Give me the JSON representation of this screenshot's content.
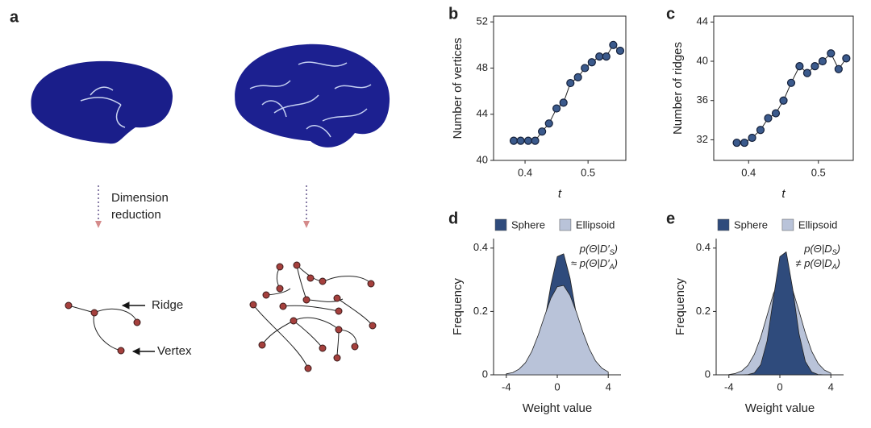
{
  "figure": {
    "panel_a": {
      "label": "a",
      "reduction_label": [
        "Dimension",
        "reduction"
      ],
      "ridge_label": "Ridge",
      "vertex_label": "Vertex"
    }
  },
  "chart_data": [
    {
      "type": "line",
      "panel_label": "b",
      "ylabel": "Number of vertices",
      "xlabel": "t",
      "color": "#3b5a8c",
      "x": [
        0.382,
        0.393,
        0.405,
        0.416,
        0.427,
        0.438,
        0.45,
        0.461,
        0.472,
        0.484,
        0.495,
        0.506,
        0.518,
        0.529,
        0.54,
        0.551
      ],
      "values": [
        41.7,
        41.7,
        41.7,
        41.7,
        42.5,
        43.2,
        44.5,
        45,
        46.7,
        47.2,
        48,
        48.5,
        49,
        49,
        50,
        49.5
      ],
      "xlim": [
        0.35,
        0.56
      ],
      "ylim": [
        40,
        52.5
      ],
      "xticks": [
        0.4,
        0.5
      ],
      "yticks": [
        40,
        44,
        48,
        52
      ]
    },
    {
      "type": "line",
      "panel_label": "c",
      "ylabel": "Number of ridges",
      "xlabel": "t",
      "color": "#3b5a8c",
      "x": [
        0.383,
        0.394,
        0.405,
        0.417,
        0.428,
        0.439,
        0.45,
        0.461,
        0.473,
        0.484,
        0.495,
        0.506,
        0.518,
        0.529,
        0.54
      ],
      "values": [
        31.7,
        31.7,
        32.2,
        33,
        34.2,
        34.7,
        36,
        37.8,
        39.5,
        38.8,
        39.5,
        40,
        40.8,
        39.2,
        40.3
      ],
      "xlim": [
        0.35,
        0.55
      ],
      "ylim": [
        29.9,
        44.6
      ],
      "xticks": [
        0.4,
        0.5
      ],
      "yticks": [
        32,
        36,
        40,
        44
      ]
    },
    {
      "type": "area",
      "panel_label": "d",
      "ylabel": "Frequency",
      "xlabel": "Weight value",
      "front_series": 1,
      "x": [
        -4,
        -3.5,
        -3,
        -2.5,
        -2,
        -1.5,
        -1,
        -0.5,
        0,
        0.5,
        1,
        1.5,
        2,
        2.5,
        3,
        3.5,
        4
      ],
      "series": [
        {
          "name": "Sphere",
          "color": "#2f4b7c",
          "values": [
            0,
            0,
            0.002,
            0.008,
            0.028,
            0.077,
            0.168,
            0.283,
            0.373,
            0.382,
            0.305,
            0.19,
            0.092,
            0.035,
            0.01,
            0.002,
            0
          ]
        },
        {
          "name": "Ellipsoid",
          "color": "#b9c3d9",
          "values": [
            0.003,
            0.007,
            0.018,
            0.038,
            0.074,
            0.125,
            0.185,
            0.242,
            0.278,
            0.282,
            0.251,
            0.198,
            0.136,
            0.083,
            0.044,
            0.021,
            0.009
          ]
        }
      ],
      "annotation": [
        {
          "prefix": "p(Θ|D′",
          "subscript": "S",
          "suffix": ")"
        },
        {
          "prefix": "≈ p(Θ|D′",
          "subscript": "A",
          "suffix": ")"
        }
      ],
      "xlim": [
        -5,
        5
      ],
      "ylim": [
        0,
        0.43
      ],
      "xticks": [
        -4,
        0,
        4
      ],
      "yticks": [
        0,
        0.2,
        0.4
      ]
    },
    {
      "type": "area",
      "panel_label": "e",
      "ylabel": "Frequency",
      "xlabel": "Weight value",
      "front_series": 0,
      "x": [
        -4,
        -3.5,
        -3,
        -2.5,
        -2,
        -1.5,
        -1,
        -0.5,
        0,
        0.5,
        1,
        1.5,
        2,
        2.5,
        3,
        3.5,
        4
      ],
      "series": [
        {
          "name": "Sphere",
          "color": "#2f4b7c",
          "values": [
            0,
            0,
            0,
            0.001,
            0.006,
            0.032,
            0.107,
            0.243,
            0.373,
            0.388,
            0.273,
            0.13,
            0.042,
            0.009,
            0.001,
            0,
            0
          ]
        },
        {
          "name": "Ellipsoid",
          "color": "#b9c3d9",
          "values": [
            0.001,
            0.004,
            0.012,
            0.03,
            0.065,
            0.119,
            0.188,
            0.257,
            0.302,
            0.306,
            0.268,
            0.202,
            0.132,
            0.074,
            0.036,
            0.015,
            0.005
          ]
        }
      ],
      "annotation": [
        {
          "prefix": "p(Θ|D",
          "subscript": "S",
          "suffix": ")"
        },
        {
          "prefix": "≠ p(Θ|D",
          "subscript": "A",
          "suffix": ")"
        }
      ],
      "xlim": [
        -5,
        5
      ],
      "ylim": [
        0,
        0.43
      ],
      "xticks": [
        -4,
        0,
        4
      ],
      "yticks": [
        0,
        0.2,
        0.4
      ]
    }
  ]
}
